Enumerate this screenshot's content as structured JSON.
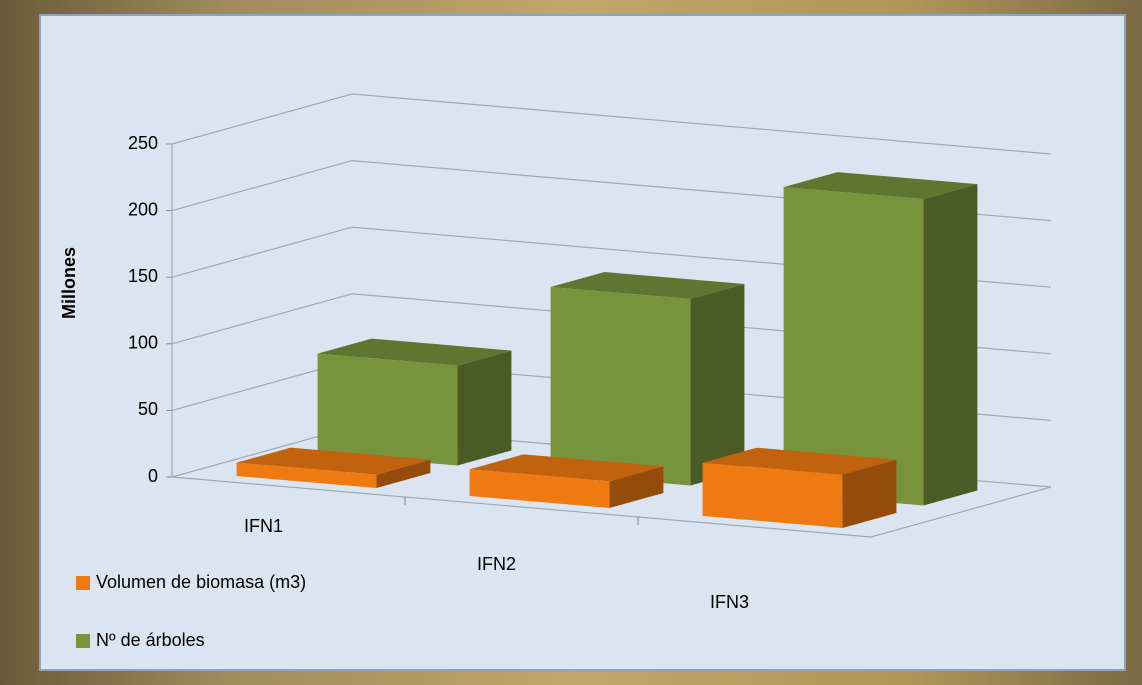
{
  "chart_data": {
    "type": "bar3d",
    "y_label": "Millones",
    "categories": [
      "IFN1",
      "IFN2",
      "IFN3"
    ],
    "series": [
      {
        "name": "Volumen de biomasa (m3)",
        "color": "#f07a12",
        "values": [
          10,
          20,
          40
        ]
      },
      {
        "name": "Nº de árboles",
        "color": "#77933c",
        "values": [
          75,
          140,
          230
        ]
      }
    ],
    "ylim": [
      0,
      250
    ],
    "yticks": [
      0,
      50,
      100,
      150,
      200,
      250
    ],
    "grid": true,
    "legend": "bottom-left"
  }
}
